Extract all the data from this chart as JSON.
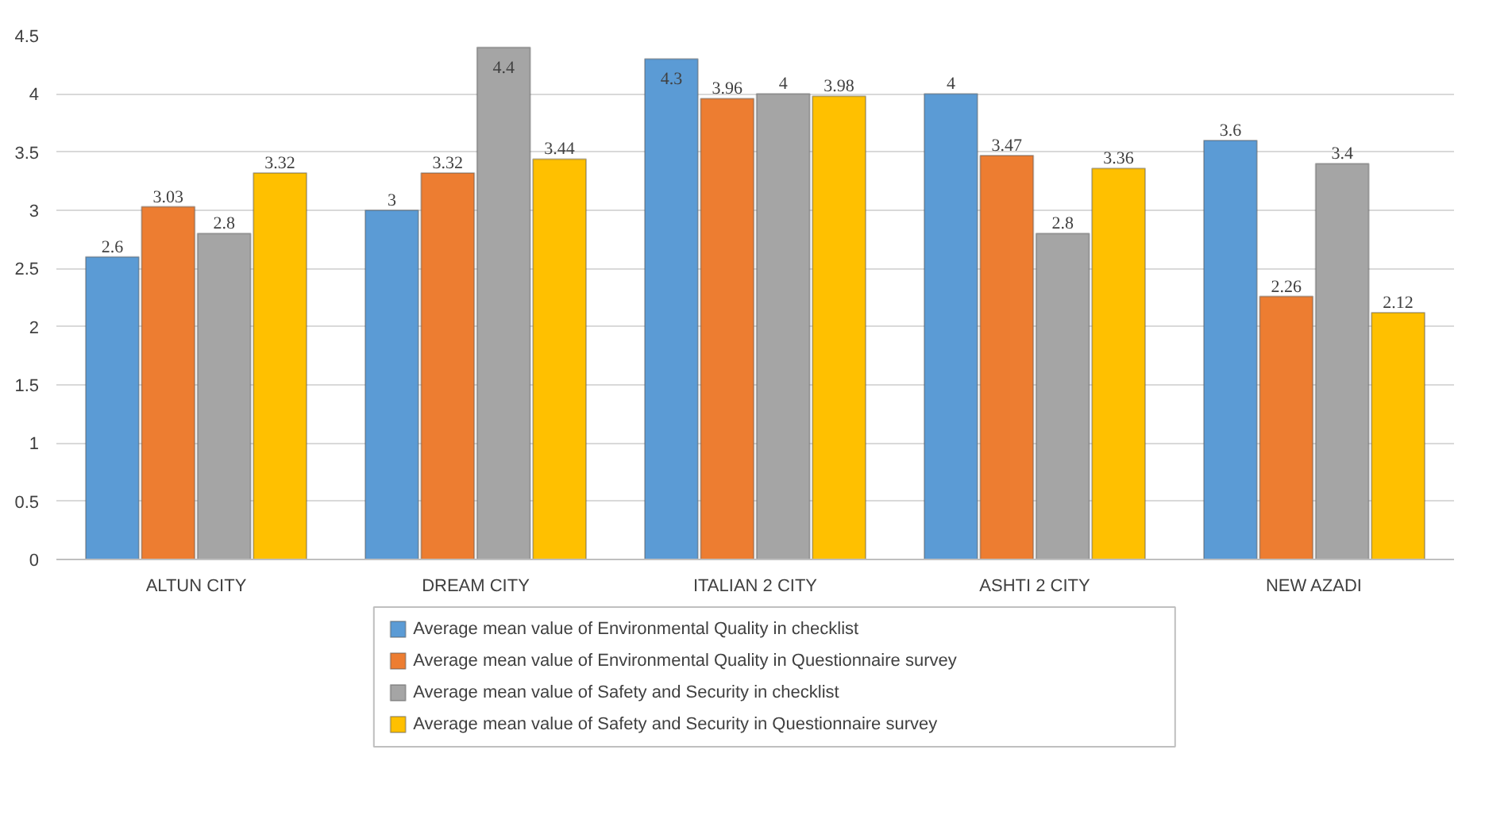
{
  "chart_data": {
    "type": "bar",
    "categories": [
      "ALTUN CITY",
      "DREAM CITY",
      "ITALIAN 2 CITY",
      "ASHTI 2 CITY",
      "NEW AZADI"
    ],
    "series": [
      {
        "name": "Average mean value of Environmental Quality in checklist",
        "color": "#5b9bd5",
        "values": [
          2.6,
          3,
          4.3,
          4,
          3.6
        ]
      },
      {
        "name": "Average mean value of Environmental Quality in Questionnaire survey",
        "color": "#ed7d31",
        "values": [
          3.03,
          3.32,
          3.96,
          3.47,
          2.26
        ]
      },
      {
        "name": "Average mean value of Safety and Security in checklist",
        "color": "#a5a5a5",
        "values": [
          2.8,
          4.4,
          4,
          2.8,
          3.4
        ]
      },
      {
        "name": "Average mean value of Safety and Security in Questionnaire survey",
        "color": "#ffc000",
        "values": [
          3.32,
          3.44,
          3.98,
          3.36,
          2.12
        ]
      }
    ],
    "ylim": [
      0,
      4.5
    ],
    "yticks": [
      0,
      0.5,
      1,
      1.5,
      2,
      2.5,
      3,
      3.5,
      4,
      4.5
    ],
    "grid": "y",
    "legend": "bottom",
    "data_labels": true
  }
}
